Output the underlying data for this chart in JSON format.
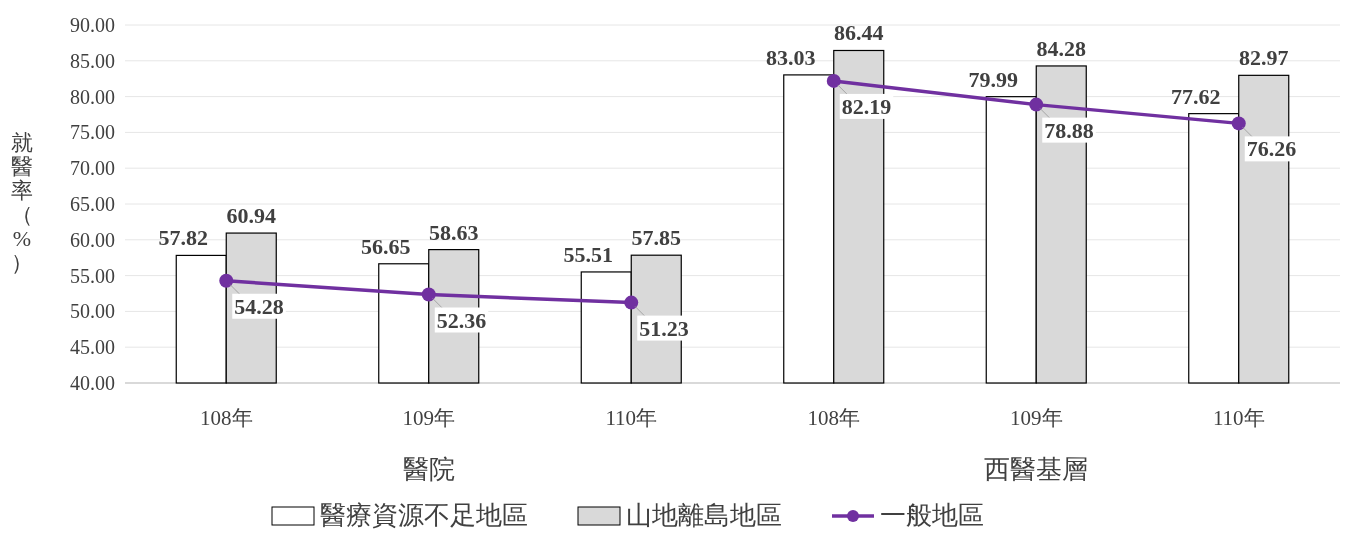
{
  "chart_data": {
    "type": "bar",
    "ylabel": "就醫率（%）",
    "categories": [
      "108年",
      "109年",
      "110年",
      "108年",
      "109年",
      "110年"
    ],
    "series": [
      {
        "name": "醫療資源不足地區",
        "color": "#ffffff",
        "values": [
          57.82,
          56.65,
          55.51,
          83.03,
          79.99,
          77.62
        ]
      },
      {
        "name": "山地離島地區",
        "color": "#d9d9d9",
        "values": [
          60.94,
          58.63,
          57.85,
          86.44,
          84.28,
          82.97
        ]
      },
      {
        "name": "一般地區",
        "type": "line",
        "color": "#7030a0",
        "values": [
          54.28,
          52.36,
          51.23,
          82.19,
          78.88,
          76.26
        ]
      }
    ],
    "annotations": [
      "醫院",
      "西醫基層"
    ],
    "ylim": [
      40,
      90
    ],
    "yticks": [
      {
        "value": 40,
        "label": "40.00"
      },
      {
        "value": 45,
        "label": "45.00"
      },
      {
        "value": 50,
        "label": "50.00"
      },
      {
        "value": 55,
        "label": "55.00"
      },
      {
        "value": 60,
        "label": "60.00"
      },
      {
        "value": 65,
        "label": "65.00"
      },
      {
        "value": 70,
        "label": "70.00"
      },
      {
        "value": 75,
        "label": "75.00"
      },
      {
        "value": 80,
        "label": "80.00"
      },
      {
        "value": 85,
        "label": "85.00"
      },
      {
        "value": 90,
        "label": "90.00"
      }
    ],
    "grid": "y",
    "legend": "bottom",
    "marker": "circle",
    "data_labels": true
  }
}
